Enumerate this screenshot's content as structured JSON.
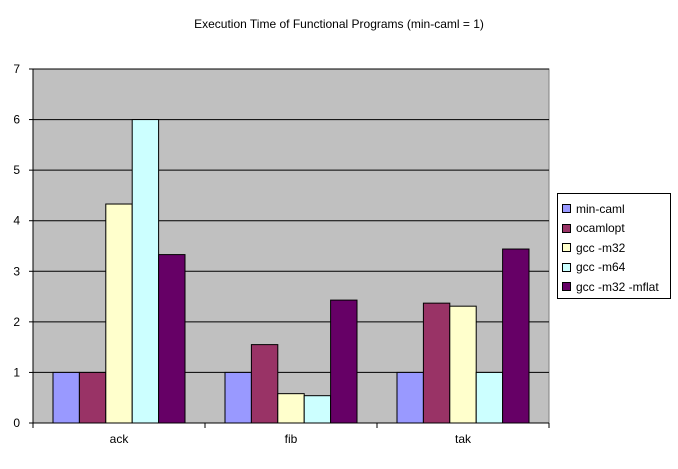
{
  "chart_data": {
    "type": "bar",
    "title": "Execution Time of Functional Programs (min-caml = 1)",
    "xlabel": "",
    "ylabel": "",
    "categories": [
      "ack",
      "fib",
      "tak"
    ],
    "ylim": [
      0,
      7
    ],
    "yticks": [
      0,
      1,
      2,
      3,
      4,
      5,
      6,
      7
    ],
    "grid": true,
    "legend_position": "right",
    "series": [
      {
        "name": "min-caml",
        "color": "#9999ff",
        "values": [
          1,
          1,
          1
        ]
      },
      {
        "name": "ocamlopt",
        "color": "#993366",
        "values": [
          1,
          1.55,
          2.37
        ]
      },
      {
        "name": "gcc -m32",
        "color": "#ffffcc",
        "values": [
          4.33,
          0.58,
          2.31
        ]
      },
      {
        "name": "gcc -m64",
        "color": "#ccffff",
        "values": [
          6,
          0.54,
          1
        ]
      },
      {
        "name": "gcc -m32 -mflat",
        "color": "#660066",
        "values": [
          3.33,
          2.43,
          3.44
        ]
      }
    ],
    "plot_background": "#c0c0c0"
  }
}
